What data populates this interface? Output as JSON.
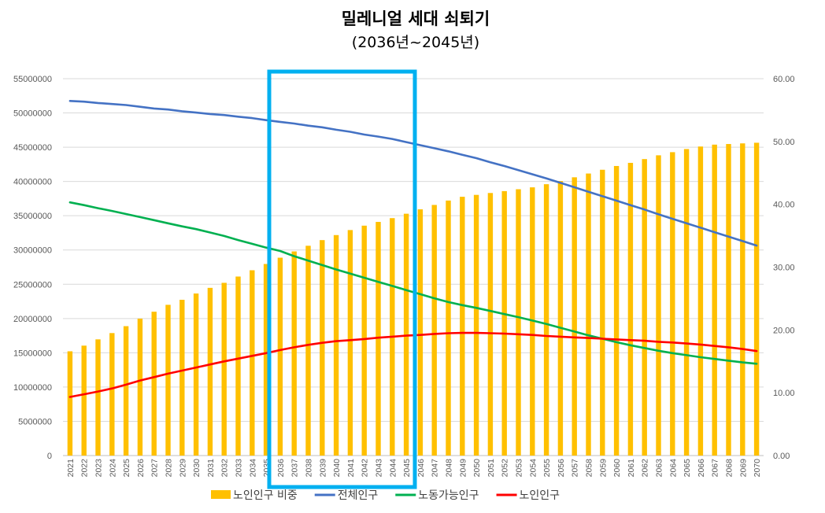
{
  "chart_data": {
    "type": "bar",
    "title": "밀레니얼 세대 쇠퇴기",
    "subtitle": "(2036년~2045년)",
    "categories": [
      "2021",
      "2022",
      "2023",
      "2024",
      "2025",
      "2026",
      "2027",
      "2028",
      "2029",
      "2030",
      "2031",
      "2032",
      "2033",
      "2034",
      "2035",
      "2036",
      "2037",
      "2038",
      "2039",
      "2040",
      "2041",
      "2042",
      "2043",
      "2044",
      "2045",
      "2046",
      "2047",
      "2048",
      "2049",
      "2050",
      "2051",
      "2052",
      "2053",
      "2054",
      "2055",
      "2056",
      "2057",
      "2058",
      "2059",
      "2060",
      "2061",
      "2062",
      "2063",
      "2064",
      "2065",
      "2066",
      "2067",
      "2068",
      "2069",
      "2070"
    ],
    "series": [
      {
        "name": "노인인구 비중",
        "type": "bar",
        "axis": "right",
        "color": "#FFC000",
        "values": [
          16.6,
          17.5,
          18.5,
          19.5,
          20.6,
          21.8,
          22.9,
          24.0,
          24.8,
          25.8,
          26.7,
          27.5,
          28.5,
          29.5,
          30.5,
          31.5,
          32.5,
          33.4,
          34.3,
          35.1,
          35.9,
          36.6,
          37.2,
          37.8,
          38.5,
          39.2,
          39.9,
          40.6,
          41.2,
          41.5,
          41.8,
          42.1,
          42.4,
          42.7,
          43.2,
          43.7,
          44.3,
          44.9,
          45.5,
          46.1,
          46.6,
          47.2,
          47.8,
          48.3,
          48.8,
          49.2,
          49.5,
          49.6,
          49.7,
          49.8
        ]
      },
      {
        "name": "전체인구",
        "type": "line",
        "axis": "left",
        "color": "#4472C4",
        "values": [
          51750000,
          51650000,
          51450000,
          51300000,
          51150000,
          50900000,
          50650000,
          50500000,
          50250000,
          50050000,
          49850000,
          49700000,
          49450000,
          49250000,
          48950000,
          48700000,
          48450000,
          48150000,
          47900000,
          47550000,
          47250000,
          46850000,
          46550000,
          46200000,
          45750000,
          45300000,
          44850000,
          44400000,
          43900000,
          43400000,
          42800000,
          42250000,
          41650000,
          41050000,
          40450000,
          39800000,
          39150000,
          38500000,
          37850000,
          37200000,
          36550000,
          35900000,
          35200000,
          34550000,
          33900000,
          33250000,
          32600000,
          31950000,
          31300000,
          30650000
        ]
      },
      {
        "name": "노동가능인구",
        "type": "line",
        "axis": "left",
        "color": "#00B050",
        "values": [
          36950000,
          36550000,
          36100000,
          35700000,
          35250000,
          34800000,
          34350000,
          33900000,
          33450000,
          33050000,
          32550000,
          32050000,
          31450000,
          30900000,
          30350000,
          29850000,
          29100000,
          28450000,
          27800000,
          27150000,
          26550000,
          25950000,
          25350000,
          24750000,
          24150000,
          23550000,
          22950000,
          22400000,
          21950000,
          21550000,
          21100000,
          20650000,
          20200000,
          19700000,
          19200000,
          18650000,
          18100000,
          17550000,
          17050000,
          16550000,
          16100000,
          15700000,
          15300000,
          14950000,
          14650000,
          14350000,
          14100000,
          13850000,
          13600000,
          13400000
        ]
      },
      {
        "name": "노인인구",
        "type": "line",
        "axis": "left",
        "color": "#FF0000",
        "values": [
          8550000,
          8950000,
          9350000,
          9800000,
          10350000,
          10950000,
          11450000,
          11950000,
          12400000,
          12850000,
          13300000,
          13750000,
          14150000,
          14550000,
          14950000,
          15400000,
          15800000,
          16150000,
          16450000,
          16700000,
          16850000,
          17000000,
          17200000,
          17350000,
          17500000,
          17600000,
          17750000,
          17850000,
          17900000,
          17900000,
          17850000,
          17800000,
          17700000,
          17600000,
          17450000,
          17350000,
          17250000,
          17150000,
          17050000,
          16950000,
          16850000,
          16750000,
          16600000,
          16500000,
          16350000,
          16200000,
          16000000,
          15800000,
          15550000,
          15250000
        ]
      }
    ],
    "y_left": {
      "min": 0,
      "max": 55000000,
      "ticks": [
        "0",
        "5000000",
        "10000000",
        "15000000",
        "20000000",
        "25000000",
        "30000000",
        "35000000",
        "40000000",
        "45000000",
        "50000000",
        "55000000"
      ]
    },
    "y_right": {
      "min": 0,
      "max": 60,
      "ticks": [
        "0.00",
        "10.00",
        "20.00",
        "30.00",
        "40.00",
        "50.00",
        "60.00"
      ]
    },
    "highlight": {
      "from": "2036",
      "to": "2045",
      "color": "#00B0F0"
    },
    "grid": true,
    "legend": "bottom"
  }
}
